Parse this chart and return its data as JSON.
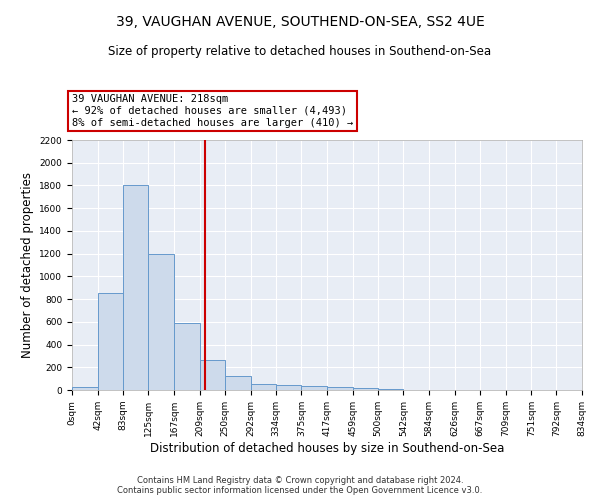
{
  "title1": "39, VAUGHAN AVENUE, SOUTHEND-ON-SEA, SS2 4UE",
  "title2": "Size of property relative to detached houses in Southend-on-Sea",
  "xlabel": "Distribution of detached houses by size in Southend-on-Sea",
  "ylabel": "Number of detached properties",
  "bin_edges": [
    0,
    42,
    83,
    125,
    167,
    209,
    250,
    292,
    334,
    375,
    417,
    459,
    500,
    542,
    584,
    626,
    667,
    709,
    751,
    792,
    834
  ],
  "bar_heights": [
    25,
    850,
    1800,
    1200,
    590,
    260,
    125,
    50,
    45,
    35,
    25,
    15,
    5,
    3,
    2,
    2,
    1,
    1,
    1,
    1
  ],
  "bar_color": "#cddaeb",
  "bar_edge_color": "#6699cc",
  "property_size": 218,
  "red_line_color": "#cc0000",
  "annotation_text": "39 VAUGHAN AVENUE: 218sqm\n← 92% of detached houses are smaller (4,493)\n8% of semi-detached houses are larger (410) →",
  "annotation_box_color": "#ffffff",
  "annotation_border_color": "#cc0000",
  "ylim": [
    0,
    2200
  ],
  "yticks": [
    0,
    200,
    400,
    600,
    800,
    1000,
    1200,
    1400,
    1600,
    1800,
    2000,
    2200
  ],
  "background_color": "#e8edf5",
  "grid_color": "#ffffff",
  "footer_text": "Contains HM Land Registry data © Crown copyright and database right 2024.\nContains public sector information licensed under the Open Government Licence v3.0.",
  "tick_label_fontsize": 6.5,
  "axis_label_fontsize": 8.5,
  "title1_fontsize": 10,
  "title2_fontsize": 8.5
}
